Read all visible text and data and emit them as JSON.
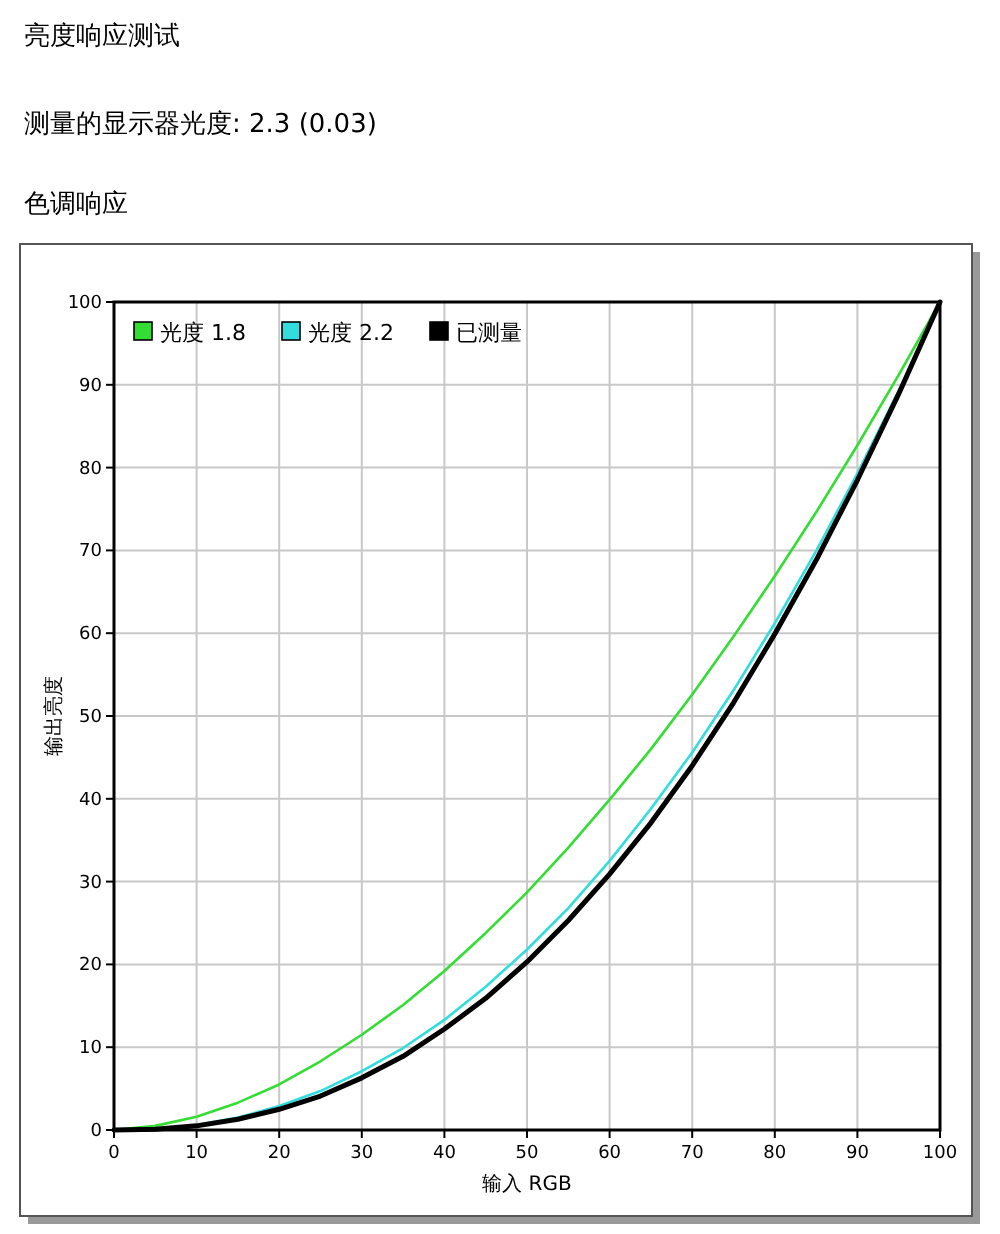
{
  "chart_data": {
    "type": "line",
    "title": "亮度响应测试",
    "subtitle": "测量的显示器光度: 2.3 (0.03)",
    "annotations": [
      "色调响应"
    ],
    "xlabel": "输入 RGB",
    "ylabel": "输出亮度",
    "x": [
      0,
      5,
      10,
      15,
      20,
      25,
      30,
      35,
      40,
      45,
      50,
      55,
      60,
      65,
      70,
      75,
      80,
      85,
      90,
      95,
      100
    ],
    "series": [
      {
        "name": "光度 1.8",
        "color": "#33dd33",
        "values": [
          0,
          0.5,
          1.6,
          3.3,
          5.5,
          8.3,
          11.5,
          15.1,
          19.2,
          23.8,
          28.7,
          34.1,
          39.9,
          46.0,
          52.6,
          59.6,
          66.9,
          74.6,
          82.7,
          91.2,
          100
        ]
      },
      {
        "name": "光度 2.2",
        "color": "#33dddd",
        "values": [
          null,
          null,
          0.6,
          1.5,
          2.9,
          4.7,
          7.1,
          9.9,
          13.3,
          17.3,
          21.8,
          26.8,
          32.5,
          38.8,
          45.6,
          53.1,
          61.2,
          69.9,
          79.3,
          89.3,
          100
        ]
      },
      {
        "name": "已测量",
        "color": "#000000",
        "values": [
          0,
          0.1,
          0.5,
          1.3,
          2.5,
          4.1,
          6.3,
          8.9,
          12.2,
          15.9,
          20.3,
          25.3,
          30.9,
          37.1,
          44.0,
          51.6,
          59.9,
          68.8,
          78.5,
          88.9,
          100
        ]
      }
    ],
    "xlim": [
      0,
      100
    ],
    "ylim": [
      0,
      100
    ],
    "xticks": [
      0,
      10,
      20,
      30,
      40,
      50,
      60,
      70,
      80,
      90,
      100
    ],
    "yticks": [
      0,
      10,
      20,
      30,
      40,
      50,
      60,
      70,
      80,
      90,
      100
    ],
    "grid": true,
    "legend": "top left",
    "marker": "none",
    "line_style": "solid"
  }
}
